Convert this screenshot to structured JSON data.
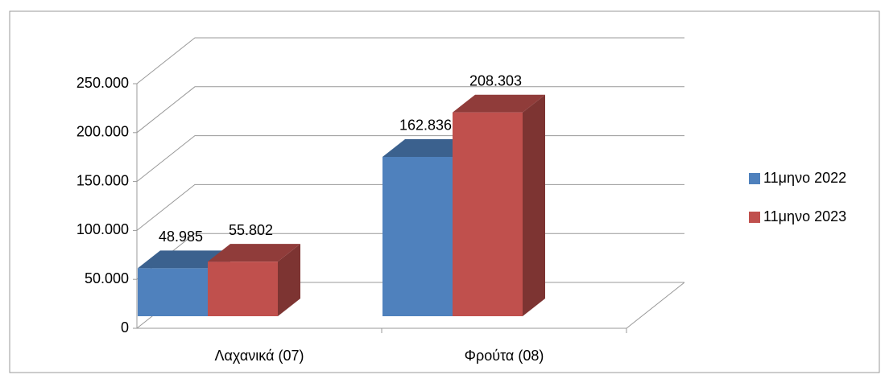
{
  "chart_data": {
    "type": "bar3d",
    "categories": [
      "Λαχανικά (07)",
      "Φρούτα (08)"
    ],
    "series": [
      {
        "name": "11μηνο 2022",
        "color": "#4f81bd",
        "values": [
          48985,
          162836
        ],
        "value_labels": [
          "48.985",
          "162.836"
        ]
      },
      {
        "name": "11μηνο 2023",
        "color": "#c0504d",
        "values": [
          55802,
          208303
        ],
        "value_labels": [
          "55.802",
          "208.303"
        ]
      }
    ],
    "ylim": [
      0,
      250000
    ],
    "yticks": [
      0,
      {
        "value": 50000,
        "label": "50.000"
      },
      {
        "value": 100000,
        "label": "100.000"
      },
      {
        "value": 150000,
        "label": "150.000"
      },
      {
        "value": 200000,
        "label": "200.000"
      },
      {
        "value": 250000,
        "label": "250.000"
      }
    ],
    "grid": true,
    "legend": "right"
  }
}
